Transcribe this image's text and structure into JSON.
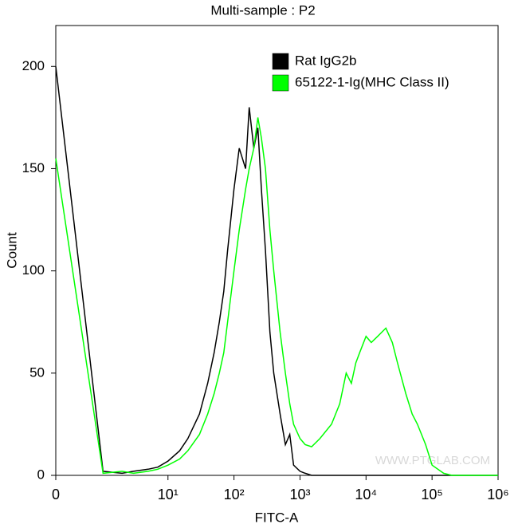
{
  "chart_data": {
    "type": "line",
    "title": "Multi-sample : P2",
    "x_label": "FITC-A",
    "y_label": "Count",
    "x": [
      0,
      1,
      2,
      3,
      5,
      7,
      10,
      15,
      20,
      30,
      40,
      50,
      60,
      70,
      80,
      100,
      120,
      150,
      170,
      200,
      230,
      260,
      300,
      350,
      400,
      500,
      600,
      700,
      800,
      1000,
      1200,
      1500,
      2000,
      3000,
      4000,
      5000,
      6000,
      7000,
      8000,
      10000,
      12000,
      15000,
      20000,
      25000,
      30000,
      40000,
      50000,
      60000,
      80000,
      100000,
      150000,
      200000,
      1000000
    ],
    "series": [
      {
        "name": "Rat IgG2b",
        "color": "#000000",
        "values": [
          200,
          2,
          1,
          2,
          3,
          4,
          7,
          12,
          18,
          30,
          45,
          60,
          75,
          90,
          110,
          140,
          160,
          150,
          180,
          160,
          170,
          140,
          110,
          70,
          50,
          30,
          15,
          20,
          5,
          2,
          1,
          0,
          0,
          0,
          0,
          0,
          0,
          0,
          0,
          0,
          0,
          0,
          0,
          0,
          0,
          0,
          0,
          0,
          0,
          0,
          0,
          0,
          0
        ]
      },
      {
        "name": "65122-1-Ig(MHC Class II)",
        "color": "#00ff00",
        "values": [
          155,
          1,
          2,
          1,
          2,
          3,
          5,
          8,
          12,
          20,
          30,
          40,
          50,
          60,
          75,
          100,
          120,
          140,
          150,
          160,
          175,
          165,
          150,
          120,
          100,
          70,
          50,
          35,
          25,
          18,
          15,
          14,
          18,
          25,
          35,
          50,
          45,
          55,
          60,
          68,
          65,
          68,
          72,
          65,
          55,
          40,
          30,
          25,
          15,
          5,
          1,
          0,
          0
        ]
      }
    ],
    "xlim": [
      0,
      1000000
    ],
    "xticks": [
      0,
      {
        "value": 10,
        "label": "10¹"
      },
      {
        "value": 100,
        "label": "10²"
      },
      {
        "value": 1000,
        "label": "10³"
      },
      {
        "value": 10000,
        "label": "10⁴"
      },
      {
        "value": 100000,
        "label": "10⁵"
      },
      {
        "value": 1000000,
        "label": "10⁶"
      }
    ],
    "ylim": [
      0,
      220
    ],
    "yticks": [
      0,
      50,
      100,
      150,
      200
    ],
    "legend": "top-right",
    "watermark": "WWW.PTGLAB.COM"
  }
}
